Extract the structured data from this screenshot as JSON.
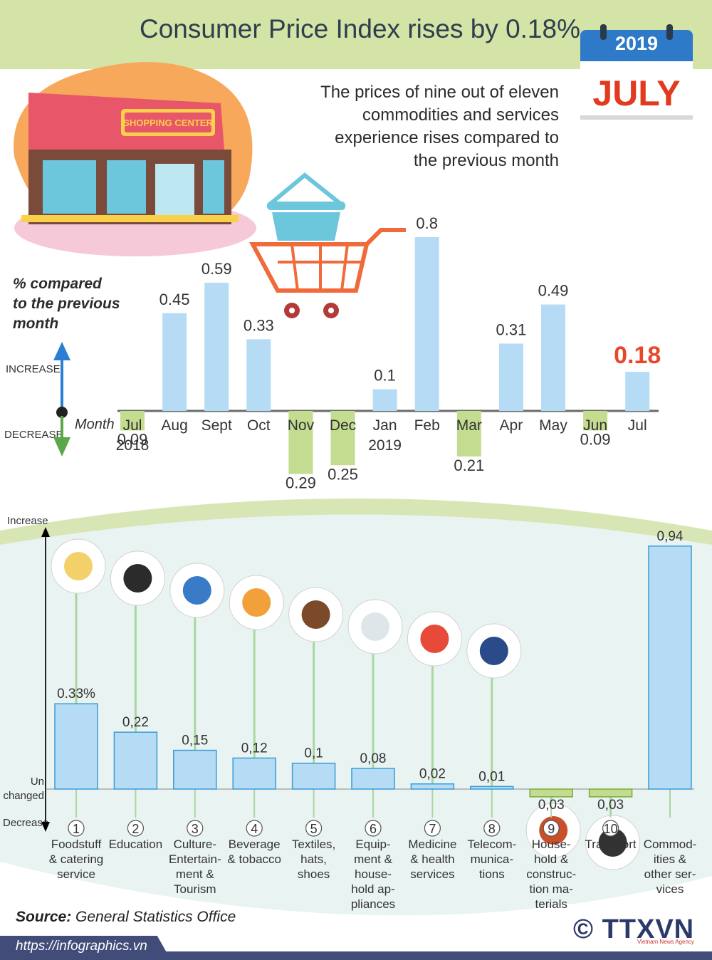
{
  "header": {
    "title": "Consumer Price Index rises by 0.18%",
    "calendar_year": "2019",
    "calendar_month": "JULY",
    "subtitle_lines": [
      "The prices of nine out of eleven",
      "commodities and services",
      "experience rises compared to",
      "the previous month"
    ],
    "shop_sign": "SHOPPING CENTER"
  },
  "colors": {
    "increase_bar": "#b5dcf4",
    "decrease_bar": "#c3dc8f",
    "highlight_value": "#e8482a",
    "header_band": "#d4e3a6",
    "footer": "#414c79"
  },
  "labels": {
    "ylabel_lines": [
      "% compared",
      "to the previous",
      "month"
    ],
    "increase": "INCREASE",
    "decrease": "DECREASE",
    "month": "Month",
    "increase2": "Increase",
    "unchanged": "Un changed",
    "decrease2": "Decrease"
  },
  "chart_data": [
    {
      "type": "bar",
      "categories": [
        "Jul 2018",
        "Aug",
        "Sept",
        "Oct",
        "Nov",
        "Dec",
        "Jan 2019",
        "Feb",
        "Mar",
        "Apr",
        "May",
        "Jun",
        "Jul"
      ],
      "values": [
        -0.09,
        0.45,
        0.59,
        0.33,
        -0.29,
        -0.25,
        0.1,
        0.8,
        -0.21,
        0.31,
        0.49,
        -0.09,
        0.18
      ],
      "value_labels": [
        "0.09",
        "0.45",
        "0.59",
        "0.33",
        "0.29",
        "0.25",
        "0.1",
        "0.8",
        "0.21",
        "0.31",
        "0.49",
        "0.09",
        "0.18"
      ],
      "month_labels": [
        [
          "Jul",
          "2018"
        ],
        [
          "Aug"
        ],
        [
          "Sept"
        ],
        [
          "Oct"
        ],
        [
          "Nov"
        ],
        [
          "Dec"
        ],
        [
          "Jan",
          "2019"
        ],
        [
          "Feb"
        ],
        [
          "Mar"
        ],
        [
          "Apr"
        ],
        [
          "May"
        ],
        [
          "Jun"
        ],
        [
          "Jul"
        ]
      ],
      "highlight": "Jul",
      "title": "",
      "ylabel": "% compared to the previous month"
    },
    {
      "type": "bar",
      "categories": [
        "Foodstuff & catering service",
        "Education",
        "Culture-Entertainment & Tourism",
        "Beverage & tobacco",
        "Textiles, hats, shoes",
        "Equipment & household appliances",
        "Medicine & health services",
        "Telecommunications",
        "Household & construction materials",
        "Transport",
        "Commodities & other services"
      ],
      "values": [
        0.33,
        0.22,
        0.15,
        0.12,
        0.1,
        0.08,
        0.02,
        0.01,
        -0.03,
        -0.03,
        0.94
      ],
      "value_labels": [
        "0.33%",
        "0,22",
        "0,15",
        "0,12",
        "0,1",
        "0,08",
        "0,02",
        "0,01",
        "0,03",
        "0,03",
        "0,94"
      ],
      "numbers": [
        "1",
        "2",
        "3",
        "4",
        "5",
        "6",
        "7",
        "8",
        "9",
        "10",
        ""
      ],
      "label_lines": [
        [
          "Foodstuff",
          "& catering",
          "service"
        ],
        [
          "Education"
        ],
        [
          "Culture-",
          "Entertain-",
          "ment &",
          "Tourism"
        ],
        [
          "Beverage",
          "& tobacco"
        ],
        [
          "Textiles,",
          "hats,",
          "shoes"
        ],
        [
          "Equip-",
          "ment &",
          "house-",
          "hold ap-",
          "pliances"
        ],
        [
          "Medicine",
          "& health",
          "services"
        ],
        [
          "Telecom-",
          "munica-",
          "tions"
        ],
        [
          "House-",
          "hold &",
          "construc-",
          "tion ma-",
          "terials"
        ],
        [
          "Transport"
        ],
        [
          "Commod-",
          "ities &",
          "other ser-",
          "vices"
        ]
      ],
      "icons": [
        "food-plate-icon",
        "graduation-cap-icon",
        "clapperboard-icon",
        "drink-cigarette-icon",
        "clothes-shoes-icon",
        "washing-machine-icon",
        "medicine-pill-icon",
        "antenna-tower-icon",
        "house-icon",
        "traffic-light-icon",
        ""
      ]
    }
  ],
  "footer": {
    "source_label": "Source:",
    "source_text": "General Statistics Office",
    "url": "https://infographics.vn",
    "copyright": "©",
    "logo": "TTXVN",
    "logo_sub": "Vietnam News Agency"
  }
}
